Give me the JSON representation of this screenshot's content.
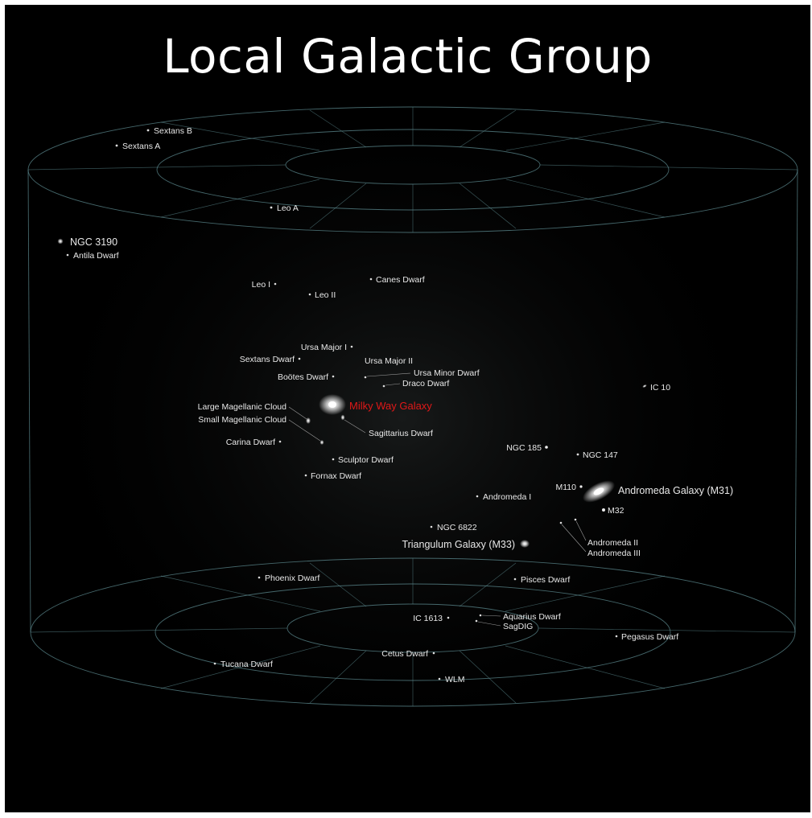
{
  "title": "Local Galactic Group",
  "galaxies": {
    "sextans_b": "Sextans B",
    "sextans_a": "Sextans A",
    "leo_a": "Leo A",
    "ngc_3190": "NGC 3190",
    "antlia_dwarf": "Antila Dwarf",
    "leo_i": "Leo I",
    "leo_ii": "Leo II",
    "canes_dwarf": "Canes Dwarf",
    "ursa_major_i": "Ursa Major I",
    "sextans_dwarf": "Sextans Dwarf",
    "ursa_major_ii": "Ursa Major II",
    "bootes_dwarf": "Boötes Dwarf",
    "ursa_minor_dwarf": "Ursa Minor Dwarf",
    "draco_dwarf": "Draco Dwarf",
    "milky_way": "Milky Way Galaxy",
    "lmc": "Large Magellanic Cloud",
    "smc": "Small Magellanic Cloud",
    "sagittarius_dwarf": "Sagittarius Dwarf",
    "carina_dwarf": "Carina Dwarf",
    "sculptor_dwarf": "Sculptor Dwarf",
    "fornax_dwarf": "Fornax Dwarf",
    "ic_10": "IC 10",
    "ngc_185": "NGC 185",
    "ngc_147": "NGC 147",
    "m110": "M110",
    "andromeda_galaxy": "Andromeda Galaxy (M31)",
    "m32": "M32",
    "andromeda_i": "Andromeda I",
    "ngc_6822": "NGC 6822",
    "triangulum_galaxy": "Triangulum Galaxy (M33)",
    "andromeda_ii": "Andromeda II",
    "andromeda_iii": "Andromeda III",
    "phoenix_dwarf": "Phoenix Dwarf",
    "pisces_dwarf": "Pisces Dwarf",
    "ic_1613": "IC 1613",
    "aquarius_dwarf": "Aquarius Dwarf",
    "sagdig": "SagDIG",
    "pegasus_dwarf": "Pegasus Dwarf",
    "cetus_dwarf": "Cetus Dwarf",
    "tucana_dwarf": "Tucana Dwarf",
    "wlm": "WLM"
  },
  "colors": {
    "background": "#000000",
    "grid": "#5c8a8f",
    "label": "#e8e8e8",
    "milky_way_label": "#e01818"
  }
}
